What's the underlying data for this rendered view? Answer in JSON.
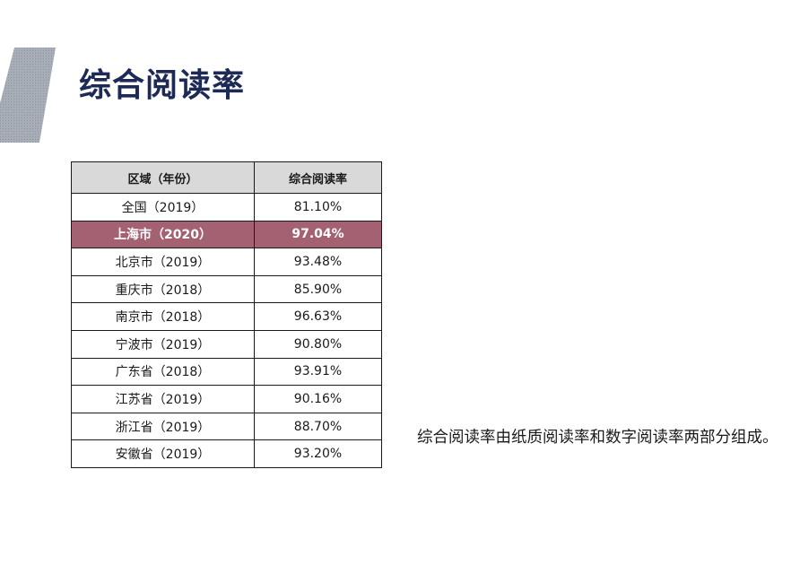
{
  "colors": {
    "title": "#1c2a55",
    "header_bg": "#d9d9d9",
    "highlight_bg": "#a36172",
    "accent_bar": "#9ea4ad"
  },
  "title": "综合阅读率",
  "table": {
    "headers": [
      "区域（年份）",
      "综合阅读率"
    ],
    "highlighted_row": 1,
    "rows": [
      {
        "region": "全国（2019）",
        "rate": "81.10%"
      },
      {
        "region": "上海市（2020）",
        "rate": "97.04%"
      },
      {
        "region": "北京市（2019）",
        "rate": "93.48%"
      },
      {
        "region": "重庆市（2018）",
        "rate": "85.90%"
      },
      {
        "region": "南京市（2018）",
        "rate": "96.63%"
      },
      {
        "region": "宁波市（2019）",
        "rate": "90.80%"
      },
      {
        "region": "广东省（2018）",
        "rate": "93.91%"
      },
      {
        "region": "江苏省（2019）",
        "rate": "90.16%"
      },
      {
        "region": "浙江省（2019）",
        "rate": "88.70%"
      },
      {
        "region": "安徽省（2019）",
        "rate": "93.20%"
      }
    ]
  },
  "note": "综合阅读率由纸质阅读率和数字阅读率两部分组成。"
}
